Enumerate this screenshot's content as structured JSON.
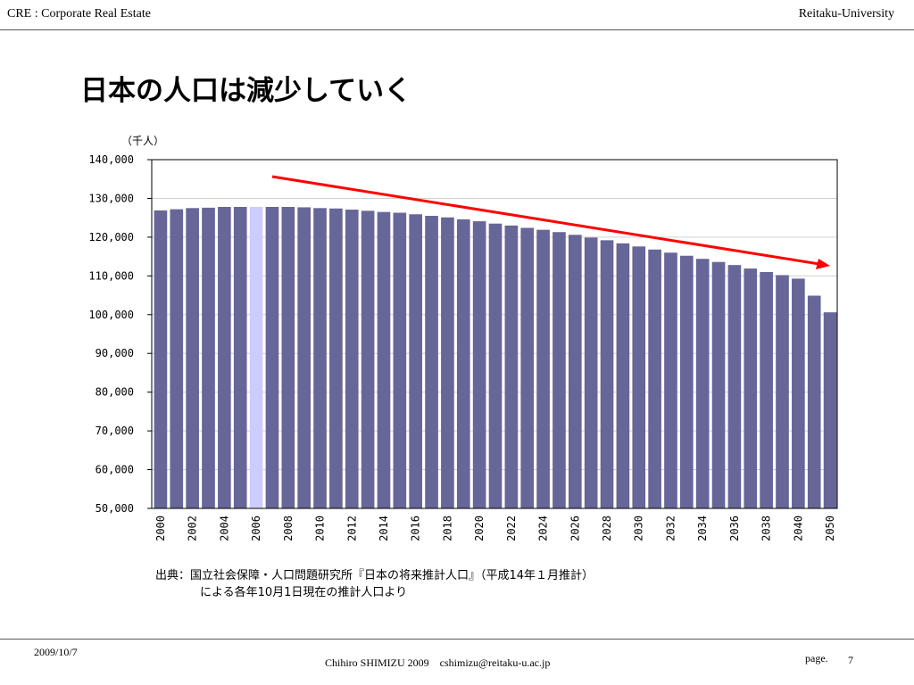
{
  "header": {
    "left": "CRE : Corporate Real Estate",
    "right": "Reitaku-University"
  },
  "slide": {
    "title": "日本の人口は減少していく"
  },
  "source_note": {
    "line1": "出典：国立社会保障・人口問題研究所『日本の将来推計人口』（平成14年１月推計）",
    "line2": "による各年10月1日現在の推計人口より"
  },
  "footer": {
    "date": "2009/10/7",
    "credit": "Chihiro SHIMIZU 2009　cshimizu@reitaku-u.ac.jp",
    "page_label": "page.",
    "page_number": "7"
  },
  "chart_data": {
    "type": "bar",
    "unit_label": "（千人）",
    "ylim": [
      50000,
      140000
    ],
    "yticks": [
      50000,
      60000,
      70000,
      80000,
      90000,
      100000,
      110000,
      120000,
      130000,
      140000
    ],
    "ytick_labels": [
      "50,000",
      "60,000",
      "70,000",
      "80,000",
      "90,000",
      "100,000",
      "110,000",
      "120,000",
      "130,000",
      "140,000"
    ],
    "categories": [
      "2000",
      "2001",
      "2002",
      "2003",
      "2004",
      "2005",
      "2006",
      "2007",
      "2008",
      "2009",
      "2010",
      "2011",
      "2012",
      "2013",
      "2014",
      "2015",
      "2016",
      "2017",
      "2018",
      "2019",
      "2020",
      "2021",
      "2022",
      "2023",
      "2024",
      "2025",
      "2026",
      "2027",
      "2028",
      "2029",
      "2030",
      "2031",
      "2032",
      "2033",
      "2034",
      "2035",
      "2036",
      "2037",
      "2038",
      "2039",
      "2040",
      "2045",
      "2050"
    ],
    "xtick_labels_shown": [
      "2000",
      "2002",
      "2004",
      "2006",
      "2008",
      "2010",
      "2012",
      "2014",
      "2016",
      "2018",
      "2020",
      "2022",
      "2024",
      "2026",
      "2028",
      "2030",
      "2032",
      "2034",
      "2036",
      "2038",
      "2040",
      "2050"
    ],
    "values": [
      126900,
      127200,
      127500,
      127600,
      127800,
      127800,
      127800,
      127800,
      127800,
      127700,
      127500,
      127400,
      127100,
      126800,
      126500,
      126300,
      125900,
      125500,
      125100,
      124600,
      124100,
      123500,
      123000,
      122400,
      121900,
      121300,
      120600,
      119900,
      119200,
      118400,
      117600,
      116800,
      116000,
      115200,
      114400,
      113600,
      112800,
      111900,
      111000,
      110200,
      109300,
      104900,
      100600
    ],
    "highlight_category": "2006",
    "bar_color": "#666699",
    "highlight_color": "#ccccff",
    "trend_arrow_color": "#ff0000",
    "grid": true
  }
}
